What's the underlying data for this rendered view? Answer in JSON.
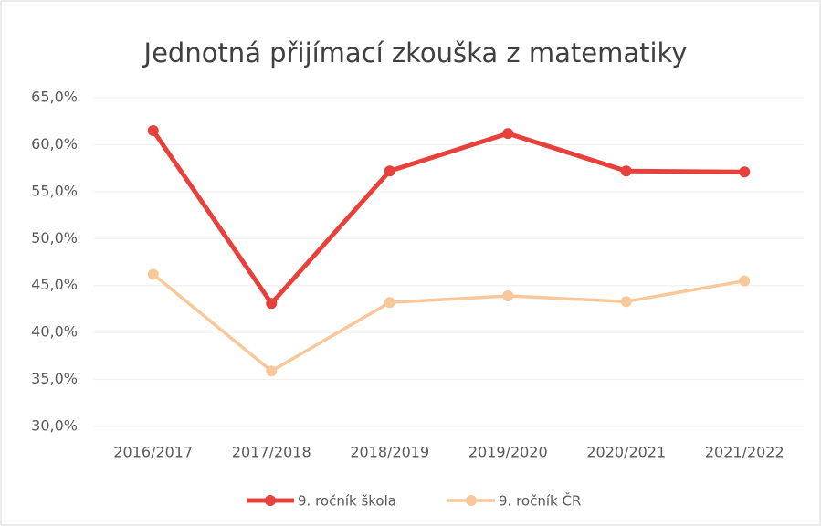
{
  "chart_data": {
    "type": "line",
    "title": "Jednotná přijímací zkouška z matematiky",
    "categories": [
      "2016/2017",
      "2017/2018",
      "2018/2019",
      "2019/2020",
      "2020/2021",
      "2021/2022"
    ],
    "series": [
      {
        "name": "9. ročník škola",
        "color": "#e8403a",
        "values": [
          61.5,
          43.1,
          57.2,
          61.2,
          57.2,
          57.1
        ]
      },
      {
        "name": "9. ročník ČR",
        "color": "#f9c89a",
        "values": [
          46.2,
          35.9,
          43.2,
          43.9,
          43.3,
          45.5
        ]
      }
    ],
    "ylim": [
      30,
      65
    ],
    "yticks": [
      {
        "value": 30,
        "label": "30,0%"
      },
      {
        "value": 35,
        "label": "35,0%"
      },
      {
        "value": 40,
        "label": "40,0%"
      },
      {
        "value": 45,
        "label": "45,0%"
      },
      {
        "value": 50,
        "label": "50,0%"
      },
      {
        "value": 55,
        "label": "55,0%"
      },
      {
        "value": 60,
        "label": "60,0%"
      },
      {
        "value": 65,
        "label": "65,0%"
      }
    ],
    "grid": true,
    "legend": "bottom"
  }
}
